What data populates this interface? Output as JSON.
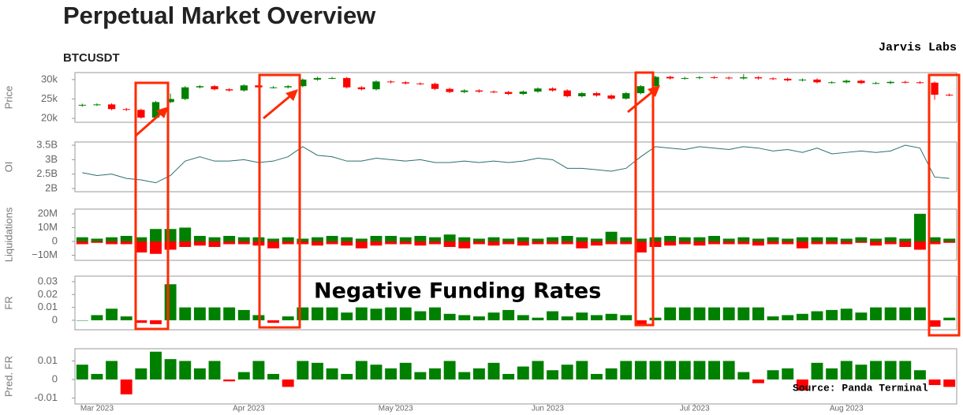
{
  "title": "Perpetual Market Overview",
  "subtitle": "BTCUSDT",
  "watermark": "Jarvis Labs",
  "annotation": "Negative Funding Rates",
  "source": "Source: Panda Terminal",
  "chart_data": [
    {
      "type": "candlestick",
      "y_label": "Price",
      "xlim": [
        -0.5,
        59.5
      ],
      "ylim": [
        19,
        31.8
      ],
      "yticks": [
        {
          "value": 20,
          "label": "20k"
        },
        {
          "value": 25,
          "label": "25k"
        },
        {
          "value": 30,
          "label": "30k"
        }
      ],
      "increasing_color": "#008000",
      "decreasing_color": "#ff0000",
      "open": [
        23.3,
        23.5,
        23.6,
        22.4,
        22.2,
        20.2,
        24.2,
        25.0,
        28.0,
        28.3,
        27.5,
        27.2,
        28.5,
        28.0,
        28.0,
        28.3,
        30.0,
        30.4,
        30.4,
        28.0,
        27.5,
        29.5,
        29.3,
        29.0,
        28.9,
        27.6,
        26.8,
        27.2,
        26.9,
        26.8,
        26.3,
        26.9,
        27.7,
        27.2,
        25.7,
        26.5,
        25.9,
        25.1,
        26.5,
        28.3,
        30.7,
        30.3,
        30.4,
        30.6,
        30.5,
        30.3,
        30.6,
        30.3,
        30.2,
        29.8,
        30.0,
        29.3,
        29.3,
        29.7,
        29.1,
        29.1,
        29.4,
        29.3,
        29.2,
        26.1
      ],
      "high": [
        23.8,
        23.9,
        23.9,
        22.7,
        22.5,
        24.5,
        26.4,
        28.3,
        28.6,
        28.6,
        27.8,
        28.8,
        28.8,
        28.3,
        28.6,
        30.3,
        30.7,
        30.7,
        30.7,
        28.3,
        29.8,
        29.8,
        29.6,
        29.3,
        29.2,
        27.9,
        27.5,
        27.5,
        27.2,
        27.1,
        27.2,
        28.0,
        28.0,
        27.5,
        26.8,
        26.8,
        26.2,
        26.8,
        28.6,
        31.0,
        31.0,
        30.7,
        30.9,
        30.9,
        30.8,
        31.4,
        30.9,
        30.6,
        30.5,
        30.3,
        30.3,
        29.6,
        30.0,
        30.0,
        29.4,
        29.7,
        29.7,
        29.6,
        29.5,
        26.4
      ],
      "low": [
        23.0,
        23.2,
        22.1,
        21.9,
        19.9,
        19.9,
        23.9,
        24.7,
        27.7,
        27.2,
        26.9,
        26.9,
        27.7,
        27.7,
        27.7,
        28.0,
        29.7,
        30.1,
        27.7,
        27.2,
        27.2,
        29.0,
        28.7,
        28.6,
        27.3,
        26.5,
        26.5,
        26.6,
        26.5,
        26.0,
        26.0,
        26.6,
        26.9,
        25.4,
        25.4,
        25.6,
        24.8,
        24.8,
        26.2,
        28.0,
        30.0,
        30.0,
        30.1,
        30.2,
        30.0,
        30.0,
        30.0,
        29.9,
        29.5,
        29.5,
        29.0,
        29.0,
        29.0,
        28.8,
        28.8,
        28.8,
        29.0,
        28.9,
        24.8,
        25.7
      ],
      "close": [
        23.5,
        23.6,
        22.4,
        22.2,
        20.2,
        24.2,
        25.0,
        28.0,
        28.3,
        27.5,
        27.2,
        28.5,
        28.0,
        28.0,
        28.3,
        30.0,
        30.4,
        30.4,
        28.0,
        27.5,
        29.5,
        29.3,
        29.0,
        28.9,
        27.6,
        26.8,
        27.2,
        26.9,
        26.8,
        26.3,
        26.9,
        27.7,
        27.2,
        25.7,
        26.5,
        25.9,
        25.1,
        26.5,
        28.3,
        30.7,
        30.3,
        30.4,
        30.6,
        30.5,
        30.3,
        30.6,
        30.3,
        30.2,
        29.8,
        30.0,
        29.3,
        29.3,
        29.7,
        29.1,
        29.1,
        29.4,
        29.3,
        29.2,
        26.1,
        26.0
      ]
    },
    {
      "type": "line",
      "y_label": "OI",
      "xlim": [
        -0.5,
        59.5
      ],
      "ylim": [
        1.89,
        3.61
      ],
      "color": "#2a6f6f",
      "yticks": [
        {
          "value": 2,
          "label": "2B"
        },
        {
          "value": 2.5,
          "label": "2.5B"
        },
        {
          "value": 3,
          "label": "3B"
        },
        {
          "value": 3.5,
          "label": "3.5B"
        }
      ],
      "values": [
        2.55,
        2.45,
        2.5,
        2.35,
        2.3,
        2.2,
        2.45,
        2.95,
        3.1,
        2.95,
        2.95,
        3.0,
        2.9,
        2.95,
        3.1,
        3.45,
        3.15,
        3.1,
        2.95,
        2.95,
        3.05,
        3.0,
        2.95,
        3.0,
        2.9,
        2.9,
        2.95,
        2.9,
        2.95,
        2.9,
        2.95,
        3.05,
        3.0,
        2.7,
        2.7,
        2.65,
        2.6,
        2.7,
        3.1,
        3.45,
        3.4,
        3.35,
        3.45,
        3.4,
        3.35,
        3.45,
        3.4,
        3.3,
        3.35,
        3.25,
        3.4,
        3.2,
        3.25,
        3.3,
        3.25,
        3.3,
        3.5,
        3.4,
        2.4,
        2.35
      ]
    },
    {
      "type": "bar",
      "y_label": "Liquidations",
      "xlim": [
        -0.5,
        59.5
      ],
      "ylim": [
        -13.7,
        23.4
      ],
      "yticks": [
        {
          "value": -10,
          "label": "−10M"
        },
        0,
        {
          "value": 10,
          "label": "10M"
        },
        {
          "value": 20,
          "label": "20M"
        }
      ],
      "series": [
        {
          "color": "#008000",
          "values": [
            3,
            2,
            3,
            4,
            3,
            9,
            9,
            10,
            4,
            3,
            4,
            3,
            3,
            2,
            3,
            2,
            3,
            4,
            3,
            2,
            4,
            4,
            3,
            4,
            3,
            5,
            3,
            2,
            3,
            2,
            3,
            2,
            3,
            4,
            3,
            2,
            7,
            3,
            2,
            3,
            4,
            3,
            3,
            4,
            2,
            3,
            2,
            3,
            2,
            3,
            3,
            3,
            2,
            3,
            2,
            3,
            2,
            20,
            3,
            2
          ]
        },
        {
          "color": "#ff0000",
          "values": [
            -2,
            -1,
            -2,
            -2,
            -8,
            -9,
            -6,
            -4,
            -3,
            -4,
            -2,
            -2,
            -3,
            -5,
            -2,
            -2,
            -3,
            -2,
            -3,
            -5,
            -3,
            -2,
            -2,
            -3,
            -2,
            -4,
            -5,
            -2,
            -3,
            -2,
            -3,
            -2,
            -2,
            -2,
            -5,
            -3,
            -2,
            -2,
            -8,
            -4,
            -3,
            -2,
            -3,
            -2,
            -2,
            -2,
            -3,
            -2,
            -2,
            -5,
            -2,
            -2,
            -2,
            -1,
            -3,
            -2,
            -4,
            -6,
            -2,
            -1
          ]
        }
      ]
    },
    {
      "type": "bar",
      "y_label": "FR",
      "xlim": [
        -0.5,
        59.5
      ],
      "ylim": [
        -0.0074,
        0.0343
      ],
      "color": "#008000",
      "negative_color": "#ff0000",
      "yticks": [
        0,
        0.01,
        0.02,
        0.03
      ],
      "values": [
        0,
        0.004,
        0.009,
        0.003,
        -0.002,
        -0.003,
        0.028,
        0.01,
        0.01,
        0.01,
        0.01,
        0.008,
        0.004,
        -0.002,
        0.003,
        0.01,
        0.01,
        0.01,
        0.006,
        0.01,
        0.009,
        0.01,
        0.01,
        0.007,
        0.01,
        0.005,
        0.004,
        0.003,
        0.006,
        0.008,
        0.004,
        0.002,
        0.007,
        0.003,
        0.006,
        0.004,
        0.005,
        0.004,
        -0.003,
        0.002,
        0.01,
        0.01,
        0.01,
        0.01,
        0.01,
        0.01,
        0.01,
        0.003,
        0.004,
        0.005,
        0.007,
        0.008,
        0.009,
        0.006,
        0.01,
        0.01,
        0.01,
        0.01,
        -0.005,
        0.002
      ]
    },
    {
      "type": "bar",
      "y_label": "Pred. FR",
      "xlim": [
        -0.5,
        59.5
      ],
      "ylim": [
        -0.0132,
        0.0166
      ],
      "color": "#008000",
      "negative_color": "#ff0000",
      "yticks": [
        -0.01,
        0,
        0.01
      ],
      "xticks": [
        {
          "value": 1,
          "label": "Mar 2023"
        },
        {
          "value": 11.33,
          "label": "Apr 2023"
        },
        {
          "value": 21.33,
          "label": "May 2023"
        },
        {
          "value": 31.67,
          "label": "Jun 2023"
        },
        {
          "value": 41.67,
          "label": "Jul 2023"
        },
        {
          "value": 52,
          "label": "Aug 2023"
        }
      ],
      "values": [
        0.008,
        0.003,
        0.01,
        -0.008,
        0.006,
        0.015,
        0.011,
        0.01,
        0.006,
        0.01,
        -0.001,
        0.004,
        0.01,
        0.003,
        -0.004,
        0.01,
        0.009,
        0.006,
        0.003,
        0.01,
        0.008,
        0.006,
        0.009,
        0.004,
        0.006,
        0.01,
        0.004,
        0.006,
        0.009,
        0.003,
        0.007,
        0.01,
        0.005,
        0.008,
        0.01,
        0.003,
        0.006,
        0.01,
        0.01,
        0.01,
        0.01,
        0.01,
        0.01,
        0.01,
        0.01,
        0.004,
        -0.002,
        0.005,
        0.006,
        -0.006,
        0.009,
        0.006,
        0.01,
        0.008,
        0.01,
        0.01,
        0.01,
        0.005,
        -0.003,
        -0.004
      ]
    }
  ]
}
